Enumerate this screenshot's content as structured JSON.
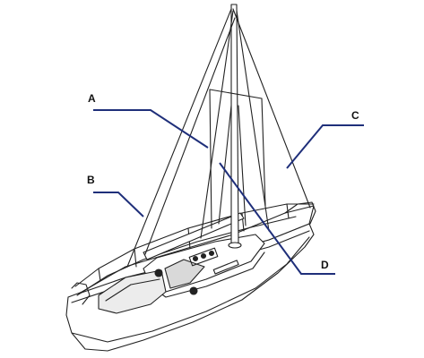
{
  "colors": {
    "line": "#222222",
    "leader": "#1f2f7a",
    "background": "#ffffff"
  },
  "labels": {
    "a": "A",
    "b": "B",
    "c": "C",
    "d": "D"
  }
}
